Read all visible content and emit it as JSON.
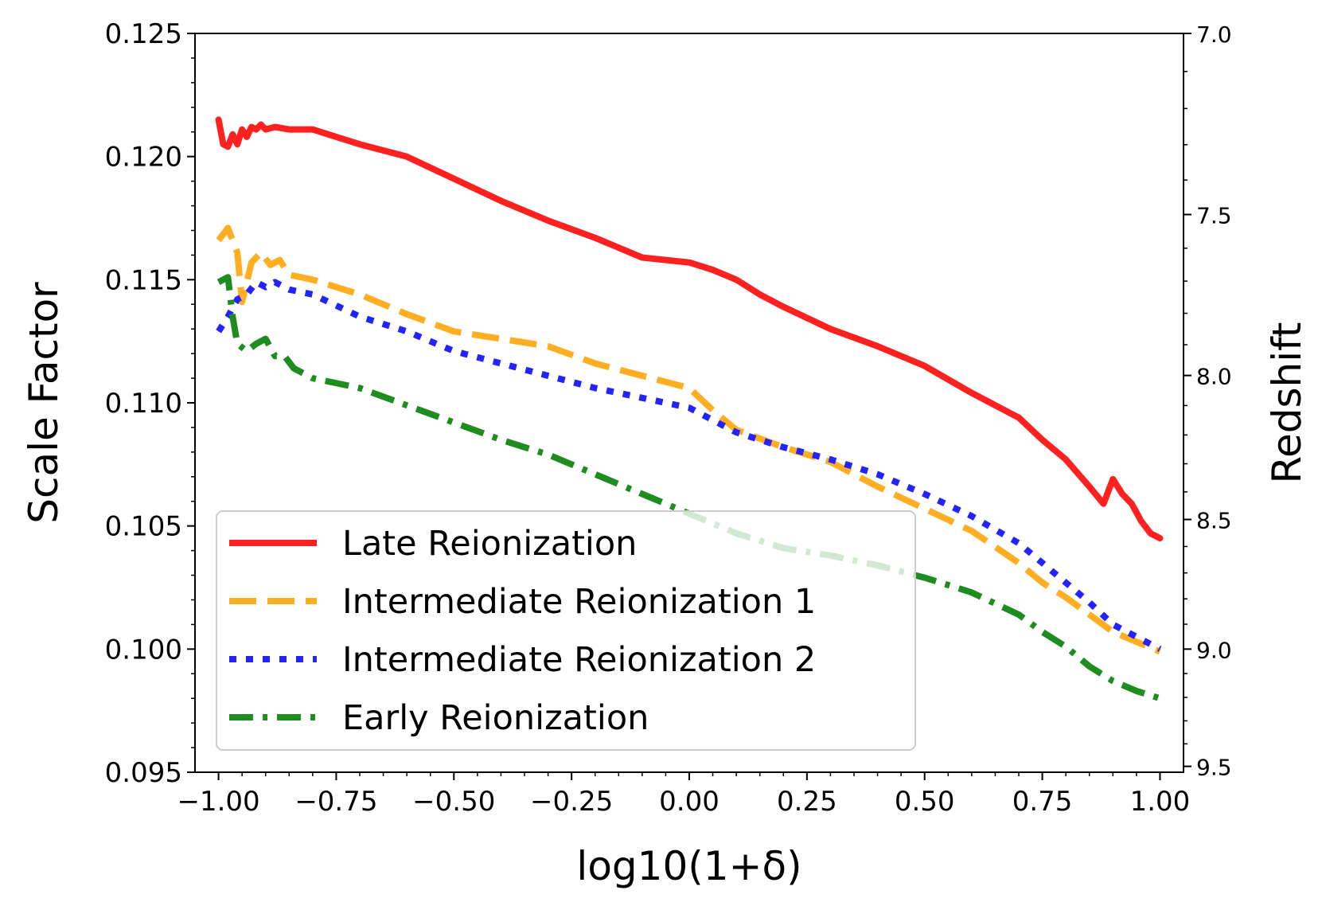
{
  "chart_data": {
    "type": "line",
    "title": "",
    "xlabel": "log10(1+δ)",
    "ylabel": "Scale Factor",
    "y2label": "Redshift",
    "xlim": [
      -1.05,
      1.05
    ],
    "ylim": [
      0.095,
      0.125
    ],
    "xticks": [
      -1.0,
      -0.75,
      -0.5,
      -0.25,
      0.0,
      0.25,
      0.5,
      0.75,
      1.0
    ],
    "xtick_labels": [
      "−1.00",
      "−0.75",
      "−0.50",
      "−0.25",
      "0.00",
      "0.25",
      "0.50",
      "0.75",
      "1.00"
    ],
    "yticks": [
      0.095,
      0.1,
      0.105,
      0.11,
      0.115,
      0.12,
      0.125
    ],
    "ytick_labels": [
      "0.095",
      "0.100",
      "0.105",
      "0.110",
      "0.115",
      "0.120",
      "0.125"
    ],
    "y2ticks": [
      7.0,
      7.5,
      8.0,
      8.5,
      9.0,
      9.5
    ],
    "y2tick_labels": [
      "7.0",
      "7.5",
      "8.0",
      "8.5",
      "9.0",
      "9.5"
    ],
    "grid": false,
    "legend_position": "lower-left",
    "series": [
      {
        "name": "Late Reionization",
        "color": "#ff2020",
        "style": "solid",
        "x": [
          -1.0,
          -0.99,
          -0.98,
          -0.97,
          -0.96,
          -0.95,
          -0.94,
          -0.93,
          -0.92,
          -0.91,
          -0.9,
          -0.88,
          -0.85,
          -0.8,
          -0.75,
          -0.7,
          -0.6,
          -0.5,
          -0.4,
          -0.3,
          -0.2,
          -0.1,
          0.0,
          0.05,
          0.1,
          0.15,
          0.2,
          0.3,
          0.4,
          0.5,
          0.6,
          0.7,
          0.75,
          0.8,
          0.85,
          0.88,
          0.9,
          0.92,
          0.94,
          0.96,
          0.98,
          1.0
        ],
        "y": [
          0.1215,
          0.1205,
          0.1204,
          0.1209,
          0.1205,
          0.1211,
          0.1208,
          0.1212,
          0.1211,
          0.1213,
          0.1211,
          0.1212,
          0.1211,
          0.1211,
          0.1208,
          0.1205,
          0.12,
          0.1191,
          0.1182,
          0.1174,
          0.1167,
          0.1159,
          0.1157,
          0.1154,
          0.115,
          0.1144,
          0.1139,
          0.113,
          0.1123,
          0.1115,
          0.1104,
          0.1094,
          0.1085,
          0.1077,
          0.1066,
          0.1059,
          0.1069,
          0.1063,
          0.1059,
          0.1052,
          0.1047,
          0.1045
        ]
      },
      {
        "name": "Intermediate Reionization 1",
        "color": "#ffae21",
        "style": "dashed",
        "x": [
          -1.0,
          -0.98,
          -0.96,
          -0.95,
          -0.93,
          -0.91,
          -0.89,
          -0.87,
          -0.85,
          -0.8,
          -0.7,
          -0.6,
          -0.5,
          -0.4,
          -0.3,
          -0.2,
          -0.1,
          0.0,
          0.05,
          0.1,
          0.2,
          0.3,
          0.4,
          0.5,
          0.6,
          0.7,
          0.75,
          0.8,
          0.85,
          0.9,
          0.95,
          1.0
        ],
        "y": [
          0.1166,
          0.1171,
          0.1161,
          0.1141,
          0.1157,
          0.1161,
          0.1156,
          0.1158,
          0.1152,
          0.115,
          0.1144,
          0.1136,
          0.1129,
          0.1126,
          0.1123,
          0.1116,
          0.1111,
          0.1106,
          0.1097,
          0.1089,
          0.1082,
          0.1076,
          0.1066,
          0.1057,
          0.1048,
          0.1035,
          0.1027,
          0.1021,
          0.1014,
          0.1007,
          0.1003,
          0.0999
        ]
      },
      {
        "name": "Intermediate Reionization 2",
        "color": "#2323ff",
        "style": "dotted",
        "x": [
          -1.0,
          -0.98,
          -0.96,
          -0.94,
          -0.92,
          -0.9,
          -0.88,
          -0.85,
          -0.8,
          -0.7,
          -0.6,
          -0.5,
          -0.4,
          -0.3,
          -0.2,
          -0.1,
          0.0,
          0.05,
          0.1,
          0.2,
          0.3,
          0.4,
          0.5,
          0.6,
          0.7,
          0.75,
          0.8,
          0.85,
          0.9,
          0.95,
          1.0
        ],
        "y": [
          0.1129,
          0.1135,
          0.1142,
          0.1144,
          0.1149,
          0.1147,
          0.1149,
          0.1146,
          0.1144,
          0.1135,
          0.1129,
          0.1121,
          0.1116,
          0.1111,
          0.1106,
          0.1102,
          0.1098,
          0.1093,
          0.1088,
          0.1082,
          0.1077,
          0.1071,
          0.1063,
          0.1054,
          0.1043,
          0.1035,
          0.1027,
          0.1019,
          0.101,
          0.1005,
          0.1
        ]
      },
      {
        "name": "Early Reionization",
        "color": "#1e8c1e",
        "style": "dashdot",
        "x": [
          -1.0,
          -0.98,
          -0.97,
          -0.96,
          -0.94,
          -0.92,
          -0.9,
          -0.88,
          -0.86,
          -0.84,
          -0.8,
          -0.7,
          -0.6,
          -0.5,
          -0.4,
          -0.3,
          -0.2,
          -0.1,
          0.0,
          0.05,
          0.1,
          0.2,
          0.3,
          0.4,
          0.5,
          0.6,
          0.7,
          0.75,
          0.8,
          0.85,
          0.9,
          0.95,
          1.0
        ],
        "y": [
          0.1149,
          0.1151,
          0.1135,
          0.1124,
          0.1121,
          0.1124,
          0.1126,
          0.1119,
          0.1119,
          0.1114,
          0.111,
          0.1106,
          0.1099,
          0.1092,
          0.1085,
          0.1079,
          0.1071,
          0.1063,
          0.1055,
          0.1051,
          0.1047,
          0.1041,
          0.1038,
          0.1034,
          0.1029,
          0.1023,
          0.1014,
          0.1007,
          0.1001,
          0.0993,
          0.0987,
          0.0983,
          0.098
        ]
      }
    ]
  }
}
